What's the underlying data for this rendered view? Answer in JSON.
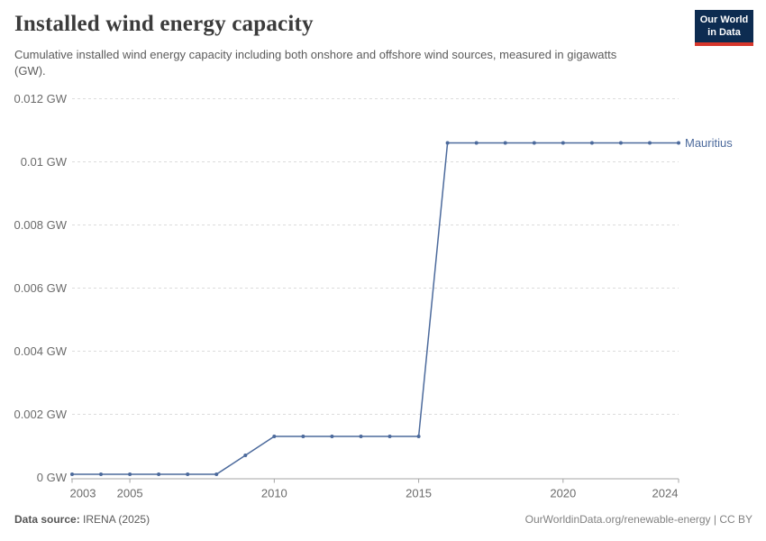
{
  "header": {
    "title": "Installed wind energy capacity",
    "subtitle": "Cumulative installed wind energy capacity including both onshore and offshore wind sources, measured in gigawatts (GW).",
    "logo": {
      "line1": "Our World",
      "line2": "in Data"
    }
  },
  "footer": {
    "source_label": "Data source:",
    "source_value": "IRENA (2025)",
    "right_text": "OurWorldinData.org/renewable-energy | CC BY"
  },
  "colors": {
    "series": "#4c6a9c",
    "grid": "#dcdcdc",
    "axis": "#a5a5a5",
    "tick_text": "#6b6b6b",
    "logo_bg": "#0d2c51",
    "logo_accent": "#d7372c",
    "title_text": "#3b3b3b",
    "subtitle_text": "#5b5b5b"
  },
  "chart_data": {
    "type": "line",
    "title": "Installed wind energy capacity",
    "xlabel": "",
    "ylabel": "",
    "xlim": [
      2003,
      2024
    ],
    "ylim": [
      0,
      0.012
    ],
    "grid": "horizontal-dashed",
    "legend": "end-of-line-label",
    "x": [
      2003,
      2004,
      2005,
      2006,
      2007,
      2008,
      2009,
      2010,
      2011,
      2012,
      2013,
      2014,
      2015,
      2016,
      2017,
      2018,
      2019,
      2020,
      2021,
      2022,
      2023,
      2024
    ],
    "series": [
      {
        "name": "Mauritius",
        "color": "#4c6a9c",
        "values": [
          0.0001,
          0.0001,
          0.0001,
          0.0001,
          0.0001,
          0.0001,
          0.0007,
          0.0013,
          0.0013,
          0.0013,
          0.0013,
          0.0013,
          0.0013,
          0.0106,
          0.0106,
          0.0106,
          0.0106,
          0.0106,
          0.0106,
          0.0106,
          0.0106,
          0.0106
        ]
      }
    ],
    "ytick_values": [
      0,
      0.002,
      0.004,
      0.006,
      0.008,
      0.01,
      0.012
    ],
    "ytick_labels": [
      "0 GW",
      "0.002 GW",
      "0.004 GW",
      "0.006 GW",
      "0.008 GW",
      "0.01 GW",
      "0.012 GW"
    ],
    "xtick_values": [
      2003,
      2005,
      2010,
      2015,
      2020,
      2024
    ],
    "xtick_labels": [
      "2003",
      "2005",
      "2010",
      "2015",
      "2020",
      "2024"
    ]
  }
}
